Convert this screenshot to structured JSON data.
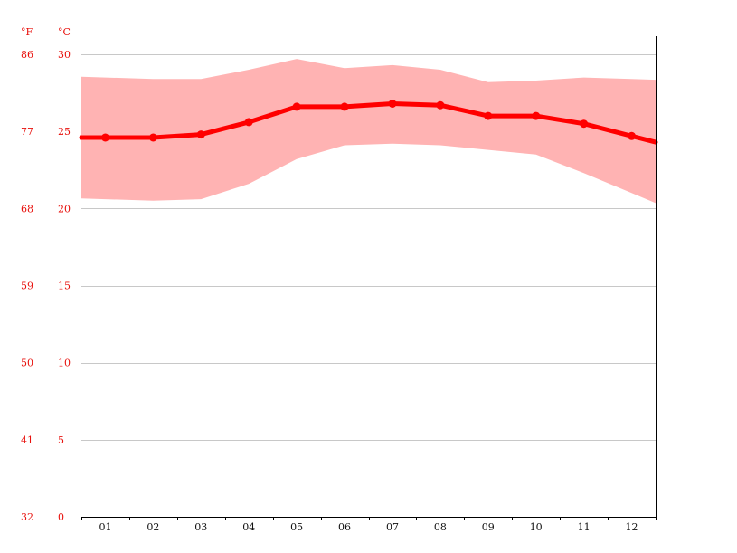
{
  "chart_data": {
    "type": "line",
    "title": "",
    "xlabel": "",
    "ylabel": "",
    "categories": [
      "01",
      "02",
      "03",
      "04",
      "05",
      "06",
      "07",
      "08",
      "09",
      "10",
      "11",
      "12"
    ],
    "series": [
      {
        "values": [
          24.6,
          24.6,
          24.8,
          25.6,
          26.6,
          26.6,
          26.8,
          26.7,
          26.0,
          26.0,
          25.5,
          24.7
        ]
      }
    ],
    "range": {
      "min": [
        20.6,
        20.5,
        20.6,
        21.6,
        23.2,
        24.1,
        24.2,
        24.1,
        23.8,
        23.5,
        22.3,
        21.0
      ],
      "max": [
        28.5,
        28.4,
        28.4,
        29.0,
        29.7,
        29.1,
        29.3,
        29.0,
        28.2,
        28.3,
        28.5,
        28.4
      ]
    },
    "ylim": [
      0,
      30
    ],
    "unit_left": "°F",
    "unit_right": "°C",
    "y_ticks_c": [
      "0",
      "5",
      "10",
      "15",
      "20",
      "25",
      "30"
    ],
    "y_ticks_f": [
      "32",
      "41",
      "50",
      "59",
      "68",
      "77",
      "86"
    ],
    "grid": true,
    "colors": {
      "line": "#ff0000",
      "band": "#ffb3b3",
      "tick_text": "#e8100c",
      "grid": "#c8c8c8",
      "axis": "#000000"
    }
  }
}
